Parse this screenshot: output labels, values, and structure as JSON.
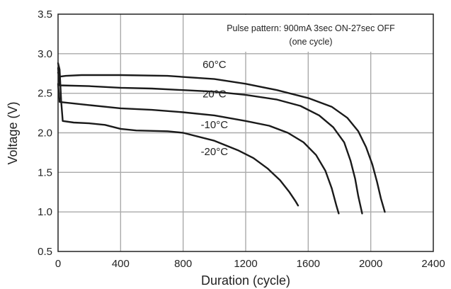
{
  "chart_data": {
    "type": "line",
    "title": "",
    "xlabel": "Duration (cycle)",
    "ylabel": "Voltage (V)",
    "xlim": [
      0,
      2400
    ],
    "ylim": [
      0.5,
      3.5
    ],
    "xticks": [
      0,
      400,
      800,
      1200,
      1600,
      2000,
      2400
    ],
    "yticks": [
      0.5,
      1.0,
      1.5,
      2.0,
      2.5,
      3.0,
      3.5
    ],
    "xtick_labels": [
      "0",
      "400",
      "800",
      "1200",
      "1600",
      "2000",
      "2400"
    ],
    "ytick_labels": [
      "0.5",
      "1.0",
      "1.5",
      "2.0",
      "2.5",
      "3.0",
      "3.5"
    ],
    "grid": true,
    "annotation": {
      "line1": "Pulse pattern: 900mA 3sec ON-27sec OFF",
      "line2": "(one cycle)"
    },
    "series": [
      {
        "name": "60°C",
        "label_at": [
          1000,
          2.82
        ],
        "points": [
          [
            0,
            2.76
          ],
          [
            10,
            2.71
          ],
          [
            50,
            2.72
          ],
          [
            150,
            2.73
          ],
          [
            400,
            2.73
          ],
          [
            700,
            2.72
          ],
          [
            1000,
            2.68
          ],
          [
            1200,
            2.62
          ],
          [
            1400,
            2.54
          ],
          [
            1600,
            2.44
          ],
          [
            1750,
            2.33
          ],
          [
            1850,
            2.19
          ],
          [
            1920,
            2.02
          ],
          [
            1970,
            1.82
          ],
          [
            2010,
            1.6
          ],
          [
            2040,
            1.38
          ],
          [
            2065,
            1.17
          ],
          [
            2090,
            1.0
          ]
        ]
      },
      {
        "name": "20°C",
        "label_at": [
          1000,
          2.45
        ],
        "points": [
          [
            0,
            2.82
          ],
          [
            10,
            2.6
          ],
          [
            200,
            2.59
          ],
          [
            400,
            2.57
          ],
          [
            600,
            2.56
          ],
          [
            800,
            2.54
          ],
          [
            1000,
            2.52
          ],
          [
            1200,
            2.48
          ],
          [
            1400,
            2.42
          ],
          [
            1550,
            2.34
          ],
          [
            1670,
            2.22
          ],
          [
            1760,
            2.07
          ],
          [
            1830,
            1.88
          ],
          [
            1870,
            1.65
          ],
          [
            1900,
            1.42
          ],
          [
            1920,
            1.2
          ],
          [
            1945,
            0.98
          ]
        ]
      },
      {
        "name": "-10°C",
        "label_at": [
          1000,
          2.06
        ],
        "points": [
          [
            0,
            2.62
          ],
          [
            10,
            2.39
          ],
          [
            200,
            2.35
          ],
          [
            400,
            2.31
          ],
          [
            600,
            2.29
          ],
          [
            800,
            2.26
          ],
          [
            1000,
            2.22
          ],
          [
            1200,
            2.15
          ],
          [
            1350,
            2.09
          ],
          [
            1470,
            2.0
          ],
          [
            1570,
            1.88
          ],
          [
            1650,
            1.72
          ],
          [
            1710,
            1.52
          ],
          [
            1750,
            1.3
          ],
          [
            1780,
            1.08
          ],
          [
            1795,
            0.98
          ]
        ]
      },
      {
        "name": "-20°C",
        "label_at": [
          1000,
          1.72
        ],
        "points": [
          [
            0,
            2.88
          ],
          [
            10,
            2.8
          ],
          [
            20,
            2.4
          ],
          [
            30,
            2.15
          ],
          [
            100,
            2.13
          ],
          [
            200,
            2.12
          ],
          [
            300,
            2.1
          ],
          [
            400,
            2.05
          ],
          [
            500,
            2.03
          ],
          [
            700,
            2.02
          ],
          [
            800,
            2.0
          ],
          [
            1000,
            1.9
          ],
          [
            1150,
            1.78
          ],
          [
            1250,
            1.68
          ],
          [
            1340,
            1.55
          ],
          [
            1420,
            1.4
          ],
          [
            1480,
            1.25
          ],
          [
            1520,
            1.13
          ],
          [
            1535,
            1.08
          ]
        ]
      }
    ]
  }
}
